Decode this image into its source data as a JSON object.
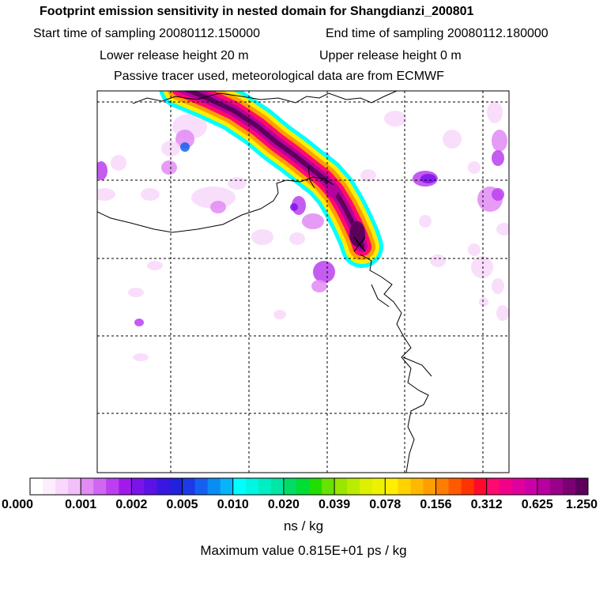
{
  "header": {
    "title": "Footprint emission sensitivity in nested domain for Shangdianzi_200801",
    "start_label": "Start time of sampling 20080112.150000",
    "end_label": "End time of sampling 20080112.180000",
    "lower_label": "Lower release height   20 m",
    "upper_label": "Upper release height    0 m",
    "tracer_line": "Passive tracer used, meteorological data are from ECMWF"
  },
  "colorbar": {
    "labels": [
      "0.000",
      "0.001",
      "0.002",
      "0.005",
      "0.010",
      "0.020",
      "0.039",
      "0.078",
      "0.156",
      "0.312",
      "0.625",
      "1.250"
    ],
    "segments": [
      [
        "#ffffff",
        "#fdeefe",
        "#f8d8fb",
        "#f2c0f8"
      ],
      [
        "#e28bf5",
        "#d066f2",
        "#bb3ff0",
        "#a11aeb"
      ],
      [
        "#7a14ea",
        "#5a12e6",
        "#3a16e2",
        "#2222dd"
      ],
      [
        "#1c3ae6",
        "#1461f0",
        "#0a8cf5",
        "#06b4fa"
      ],
      [
        "#00ffff",
        "#00f6e3",
        "#00eec4",
        "#00e6a4"
      ],
      [
        "#00dd66",
        "#00dd33",
        "#22dd00",
        "#66e300"
      ],
      [
        "#99e600",
        "#bbec00",
        "#ddf000",
        "#eef200"
      ],
      [
        "#ffee00",
        "#ffd300",
        "#ffb800",
        "#ff9e00"
      ],
      [
        "#ff7d00",
        "#ff5a00",
        "#ff3300",
        "#ff0a2a"
      ],
      [
        "#ff0a6e",
        "#f2008a",
        "#e0009b",
        "#cc00a8"
      ],
      [
        "#b8009e",
        "#9a008a",
        "#7b0073",
        "#5c005c"
      ]
    ],
    "unit": "ns / kg",
    "maximum_line": "Maximum value  0.815E+01 ps / kg"
  },
  "map": {
    "plume_colors": [
      "#00ffff",
      "#ffee00",
      "#ff9e00",
      "#ff0a6e",
      "#b8009e",
      "#5c005c"
    ],
    "background_blob_colors": [
      "#f8d8fb",
      "#e28bf5",
      "#bb3ff0",
      "#7a14ea",
      "#1461f0"
    ]
  }
}
